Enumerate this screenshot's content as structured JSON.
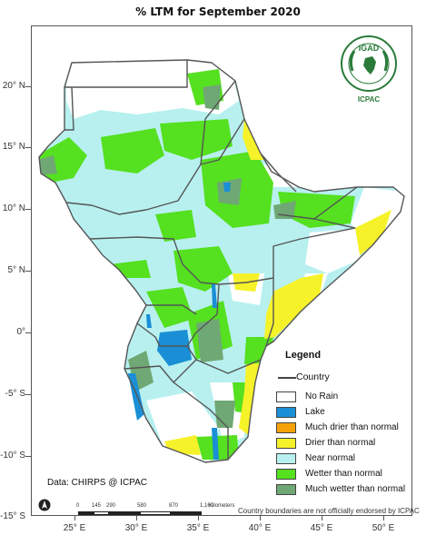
{
  "title": "% LTM  for  September 2020",
  "lat_labels": [
    "20° N",
    "15° N",
    "10° N",
    "5° N",
    "0°",
    "-5° S",
    "-10° S",
    "-15° S"
  ],
  "lon_labels": [
    "25° E",
    "30° E",
    "35° E",
    "40° E",
    "45° E",
    "50° E"
  ],
  "legend": {
    "title": "Legend",
    "country_label": "Country",
    "items": [
      {
        "label": "No Rain",
        "color": "#ffffff"
      },
      {
        "label": "Lake",
        "color": "#1a8fd6"
      },
      {
        "label": "Much drier than normal",
        "color": "#f5a20a"
      },
      {
        "label": "Drier than normal",
        "color": "#f6f22a"
      },
      {
        "label": "Near normal",
        "color": "#b8f0f0"
      },
      {
        "label": "Wetter than normal",
        "color": "#55e020"
      },
      {
        "label": "Much wetter than normal",
        "color": "#6fa874"
      }
    ]
  },
  "data_credit": "Data: CHIRPS @ ICPAC",
  "scale": {
    "unit": "Kilometers",
    "ticks": [
      "0",
      "145",
      "290",
      "580",
      "870",
      "1,160"
    ]
  },
  "footnote": "Country boundaries are not officially endorsed by ICPAC",
  "logo": {
    "title": "IGAD",
    "caption": "ICPAC",
    "color": "#2a7b3a"
  }
}
